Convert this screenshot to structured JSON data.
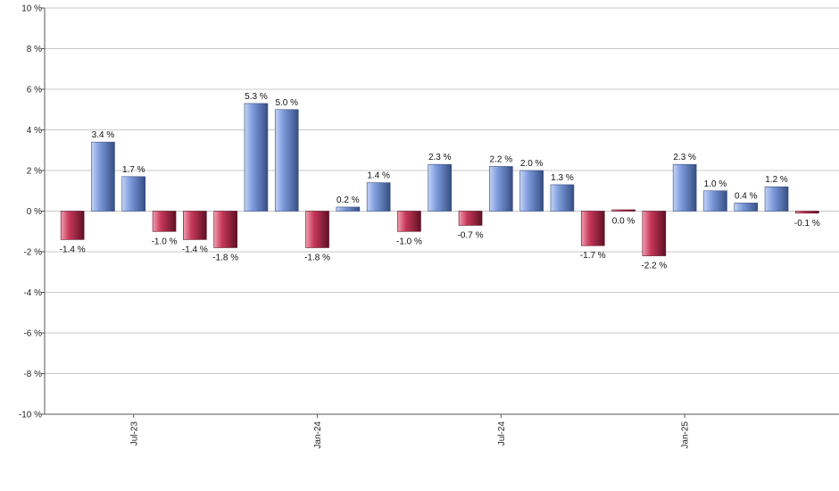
{
  "chart_data": {
    "type": "bar",
    "title": "",
    "xlabel": "",
    "ylabel": "",
    "ylim": [
      -10,
      10
    ],
    "y_ticks": [
      10,
      8,
      6,
      4,
      2,
      0,
      -2,
      -4,
      -6,
      -8,
      -10
    ],
    "y_tick_labels": [
      "10 %",
      "8 %",
      "6 %",
      "4 %",
      "2 %",
      "0 %",
      "-2 %",
      "-4 %",
      "-6 %",
      "-8 %",
      "-10 %"
    ],
    "grid": true,
    "x_tick_labels": [
      {
        "label": "Jul-23",
        "index": 2
      },
      {
        "label": "Jan-24",
        "index": 8
      },
      {
        "label": "Jul-24",
        "index": 14
      },
      {
        "label": "Jan-25",
        "index": 20
      }
    ],
    "values": [
      -1.4,
      3.4,
      1.7,
      -1.0,
      -1.4,
      -1.8,
      5.3,
      5.0,
      -1.8,
      0.2,
      1.4,
      -1.0,
      2.3,
      -0.7,
      2.2,
      2.0,
      1.3,
      -1.7,
      0.0,
      -2.2,
      2.3,
      1.0,
      0.4,
      1.2,
      -0.1
    ],
    "data_labels": [
      "-1.4 %",
      "3.4 %",
      "1.7 %",
      "-1.0 %",
      "-1.4 %",
      "-1.8 %",
      "5.3 %",
      "5.0 %",
      "-1.8 %",
      "0.2 %",
      "1.4 %",
      "-1.0 %",
      "2.3 %",
      "-0.7 %",
      "2.2 %",
      "2.0 %",
      "1.3 %",
      "-1.7 %",
      "0.0 %",
      "-2.2 %",
      "2.3 %",
      "1.0 %",
      "0.4 %",
      "1.2 %",
      "-0.1 %"
    ],
    "colors": {
      "positive_light": "#c4d4f6",
      "positive_mid": "#7d9bdc",
      "positive_dark": "#364e83",
      "negative_light": "#f0a0b0",
      "negative_mid": "#c8385a",
      "negative_dark": "#5e1024",
      "grid": "#c8c8c8",
      "axis": "#555555"
    }
  }
}
